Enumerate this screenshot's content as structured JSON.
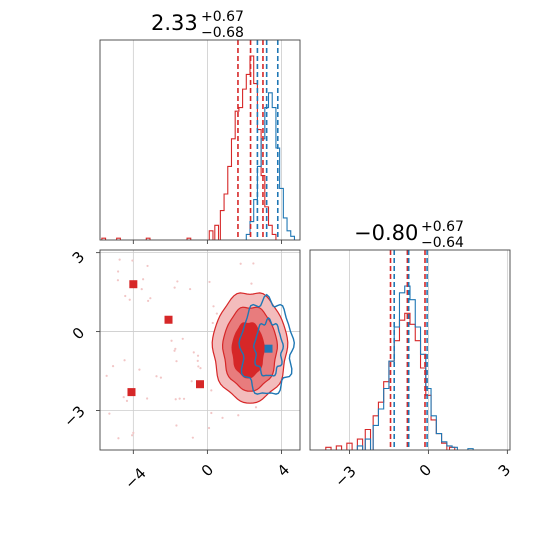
{
  "colors": {
    "red": "#d62728",
    "blue": "#1f77b4",
    "red_fill_dark": "#d62728",
    "red_fill_mid": "#e87c7d",
    "red_fill_light": "#f3bcbc",
    "grid": "#cccccc",
    "scatter_light": "#f2c6c6"
  },
  "panels": {
    "top": {
      "title_value": "2.33",
      "title_plus": "+0.67",
      "title_minus": "−0.68"
    },
    "right": {
      "title_value": "−0.80",
      "title_plus": "+0.67",
      "title_minus": "−0.64"
    },
    "joint": {
      "xticks": [
        "−4",
        "0",
        "4"
      ],
      "yticks": [
        "3",
        "0",
        "−3"
      ]
    },
    "right_xticks": [
      "−3",
      "0",
      "3"
    ]
  },
  "chart_data": [
    {
      "type": "histogram",
      "panel": "top-left marginal",
      "xlim": [
        -5.8,
        5.0
      ],
      "grid": true,
      "series": [
        {
          "color": "red",
          "peak": 1.0,
          "quantiles": [
            1.65,
            2.33,
            3.0
          ],
          "bins": [
            [
              -5.6,
              0.01
            ],
            [
              -4.8,
              0.01
            ],
            [
              -3.2,
              0.01
            ],
            [
              -1.0,
              0.01
            ],
            [
              0.2,
              0.05
            ],
            [
              0.5,
              0.08
            ],
            [
              0.8,
              0.16
            ],
            [
              1.0,
              0.25
            ],
            [
              1.2,
              0.4
            ],
            [
              1.4,
              0.55
            ],
            [
              1.6,
              0.7
            ],
            [
              1.8,
              0.72
            ],
            [
              2.0,
              0.82
            ],
            [
              2.2,
              0.9
            ],
            [
              2.4,
              1.0
            ],
            [
              2.6,
              0.85
            ],
            [
              2.8,
              0.6
            ],
            [
              3.0,
              0.35
            ],
            [
              3.2,
              0.18
            ],
            [
              3.4,
              0.08
            ],
            [
              3.6,
              0.03
            ]
          ]
        },
        {
          "color": "blue",
          "quantiles": [
            2.7,
            3.2,
            3.8
          ],
          "bins": [
            [
              2.2,
              0.03
            ],
            [
              2.4,
              0.1
            ],
            [
              2.6,
              0.22
            ],
            [
              2.8,
              0.4
            ],
            [
              3.0,
              0.55
            ],
            [
              3.2,
              0.72
            ],
            [
              3.4,
              0.8
            ],
            [
              3.6,
              0.72
            ],
            [
              3.8,
              0.5
            ],
            [
              4.0,
              0.28
            ],
            [
              4.2,
              0.12
            ],
            [
              4.4,
              0.05
            ],
            [
              4.6,
              0.02
            ]
          ]
        }
      ]
    },
    {
      "type": "scatter",
      "panel": "joint",
      "xlim": [
        -5.8,
        5.0
      ],
      "ylim": [
        -4.5,
        3.1
      ],
      "grid": true,
      "contours": [
        {
          "color": "red",
          "level": "outer",
          "cx": 2.3,
          "cy": -0.6,
          "rx": 2.0,
          "ry": 2.1
        },
        {
          "color": "red",
          "level": "mid",
          "cx": 2.3,
          "cy": -0.65,
          "rx": 1.45,
          "ry": 1.6
        },
        {
          "color": "red",
          "level": "inner",
          "cx": 2.2,
          "cy": -0.7,
          "rx": 0.85,
          "ry": 1.05
        },
        {
          "color": "blue",
          "level": "outer",
          "cx": 3.2,
          "cy": -0.6,
          "rx": 1.4,
          "ry": 1.8
        },
        {
          "color": "blue",
          "level": "inner",
          "cx": 3.3,
          "cy": -0.65,
          "rx": 0.75,
          "ry": 1.05
        }
      ],
      "red_markers": [
        [
          -4.0,
          1.8
        ],
        [
          -2.1,
          0.45
        ],
        [
          -0.4,
          -2.0
        ],
        [
          -4.1,
          -2.3
        ],
        [
          2.3,
          -0.8
        ]
      ],
      "blue_markers": [
        [
          3.3,
          -0.65
        ]
      ]
    },
    {
      "type": "histogram",
      "panel": "right marginal",
      "xlim": [
        -4.5,
        3.1
      ],
      "grid": true,
      "series": [
        {
          "color": "red",
          "quantiles": [
            -1.44,
            -0.8,
            -0.13
          ],
          "bins": [
            [
              -3.8,
              0.02
            ],
            [
              -3.4,
              0.03
            ],
            [
              -3.0,
              0.05
            ],
            [
              -2.6,
              0.08
            ],
            [
              -2.3,
              0.15
            ],
            [
              -2.0,
              0.25
            ],
            [
              -1.8,
              0.35
            ],
            [
              -1.6,
              0.5
            ],
            [
              -1.4,
              0.65
            ],
            [
              -1.2,
              0.8
            ],
            [
              -1.0,
              0.95
            ],
            [
              -0.8,
              1.0
            ],
            [
              -0.6,
              0.92
            ],
            [
              -0.4,
              0.8
            ],
            [
              -0.2,
              0.6
            ],
            [
              0.0,
              0.4
            ],
            [
              0.2,
              0.22
            ],
            [
              0.4,
              0.12
            ],
            [
              0.6,
              0.05
            ],
            [
              0.9,
              0.02
            ]
          ]
        },
        {
          "color": "blue",
          "quantiles": [
            -1.3,
            -0.75,
            -0.05
          ],
          "bins": [
            [
              -2.6,
              0.03
            ],
            [
              -2.3,
              0.08
            ],
            [
              -2.0,
              0.18
            ],
            [
              -1.8,
              0.3
            ],
            [
              -1.6,
              0.45
            ],
            [
              -1.4,
              0.65
            ],
            [
              -1.2,
              0.9
            ],
            [
              -1.0,
              1.15
            ],
            [
              -0.8,
              1.2
            ],
            [
              -0.6,
              1.1
            ],
            [
              -0.4,
              0.9
            ],
            [
              -0.2,
              0.7
            ],
            [
              0.0,
              0.45
            ],
            [
              0.2,
              0.25
            ],
            [
              0.4,
              0.12
            ],
            [
              0.6,
              0.06
            ],
            [
              0.8,
              0.03
            ],
            [
              1.0,
              0.02
            ],
            [
              1.6,
              0.01
            ]
          ]
        }
      ]
    }
  ]
}
